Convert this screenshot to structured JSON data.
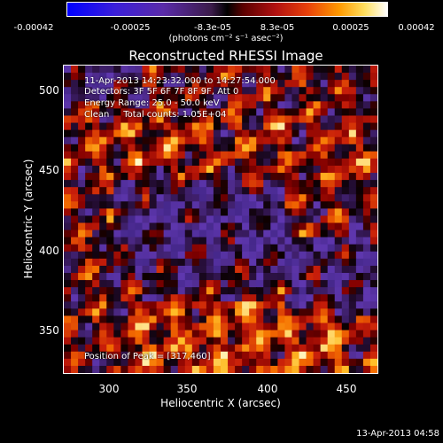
{
  "colorbar": {
    "ticks": [
      "-0.00042",
      "-0.00025",
      "-8.3e-05",
      "8.3e-05",
      "0.00025",
      "0.00042"
    ],
    "unit": "(photons cm⁻² s⁻¹ asec⁻²)"
  },
  "plot": {
    "title": "Reconstructed RHESSI Image",
    "info": {
      "time_range": "11-Apr-2013 14:23:32.000 to 14:27:54.000",
      "detectors": "Detectors: 3F 5F 6F 7F 8F 9F, Att 0",
      "energy": "Energy Range: 25.0 - 50.0 keV",
      "clean": "Clean     Total counts: 1.05E+04",
      "peak": "Position of Peak = [317,460]"
    },
    "xlabel": "Heliocentric X (arcsec)",
    "ylabel": "Heliocentric Y (arcsec)",
    "xticks": [
      "300",
      "350",
      "400",
      "450"
    ],
    "yticks": [
      "500",
      "450",
      "400",
      "350"
    ],
    "xlim": [
      273,
      467
    ],
    "ylim": [
      320,
      515
    ]
  },
  "timestamp": "13-Apr-2013 04:58"
}
